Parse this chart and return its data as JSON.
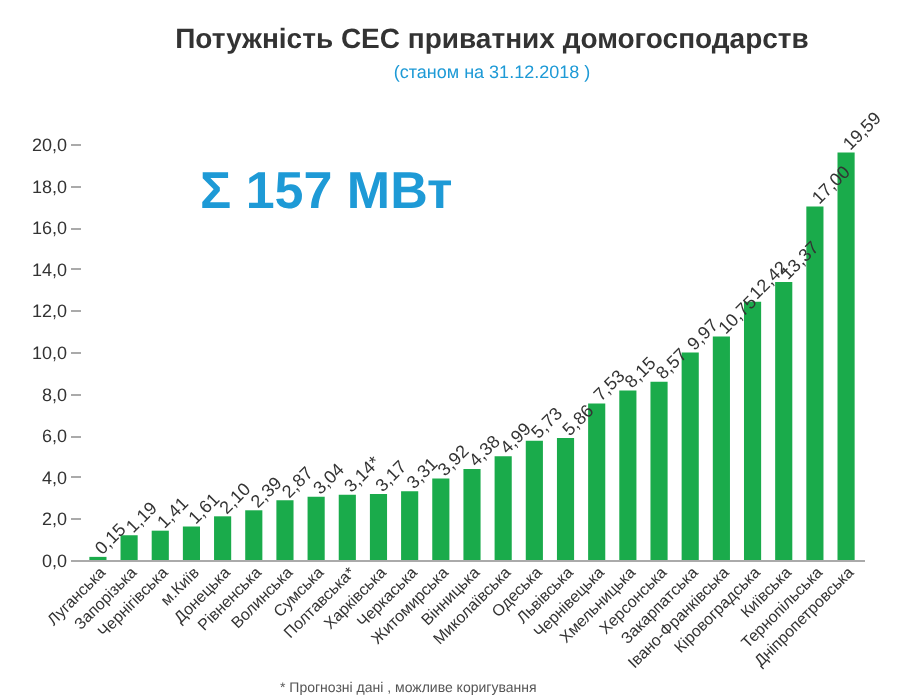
{
  "chart_data": {
    "type": "bar",
    "title": "Потужність СЕС приватних домогосподарств",
    "subtitle": "(станом на 31.12.2018 )",
    "annotations": [
      "Σ 157 МВт",
      "* Прогнозні дані , можливе коригування"
    ],
    "categories": [
      "Луганська",
      "Запорізька",
      "Чернігівська",
      "м.Київ",
      "Донецька",
      "Рівненська",
      "Волинська",
      "Сумська",
      "Полтавська*",
      "Харківська",
      "Черкаська",
      "Житомирська",
      "Вінницька",
      "Миколаївська",
      "Одеська",
      "Львівська",
      "Чернівецька",
      "Хмельницька",
      "Херсонська",
      "Закарпатська",
      "Івано-Франківська",
      "Кіровоградська",
      "Київська",
      "Тернопільська",
      "Дніпропетровська"
    ],
    "values": [
      0.15,
      1.19,
      1.41,
      1.61,
      2.1,
      2.39,
      2.87,
      3.04,
      3.14,
      3.17,
      3.31,
      3.92,
      4.38,
      4.99,
      5.73,
      5.86,
      7.53,
      8.15,
      8.57,
      9.97,
      10.75,
      12.42,
      13.37,
      17.0,
      19.59
    ],
    "value_labels": [
      "0,15",
      "1,19",
      "1,41",
      "1,61",
      "2,10",
      "2,39",
      "2,87",
      "3,04",
      "3,14*",
      "3,17",
      "3,31",
      "3,92",
      "4,38",
      "4,99",
      "5,73",
      "5,86",
      "7,53",
      "8,15",
      "8,57",
      "9,97",
      "10,75",
      "12,42",
      "13,37",
      "17,00",
      "19,59"
    ],
    "color": "#1aab4b",
    "ylim": [
      0,
      20
    ],
    "yticks": [
      {
        "value": 0,
        "label": "0,0"
      },
      {
        "value": 2,
        "label": "2,0"
      },
      {
        "value": 4,
        "label": "4,0"
      },
      {
        "value": 6,
        "label": "6,0"
      },
      {
        "value": 8,
        "label": "8,0"
      },
      {
        "value": 10,
        "label": "10,0"
      },
      {
        "value": 12,
        "label": "12,0"
      },
      {
        "value": 14,
        "label": "14,0"
      },
      {
        "value": 16,
        "label": "16,0"
      },
      {
        "value": 18,
        "label": "18,0"
      },
      {
        "value": 20,
        "label": "20,0"
      }
    ],
    "grid": false
  }
}
